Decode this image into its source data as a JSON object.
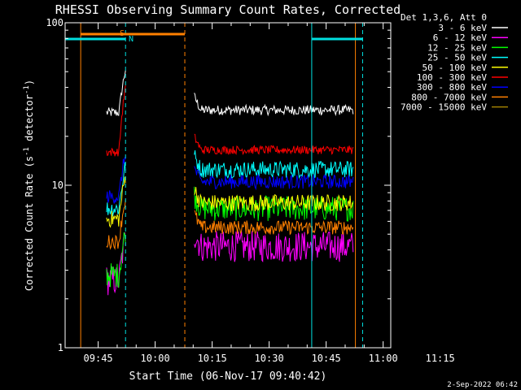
{
  "chart_data": {
    "type": "line",
    "title": "RHESSI Observing Summary Count Rates, Corrected",
    "xlabel": "Start Time (06-Nov-17 09:40:42)",
    "ylabel": "Corrected Count Rate (s",
    "ylabel_sup1": "-1",
    "ylabel_mid": " detector",
    "ylabel_sup2": "-1",
    "ylabel_end": ")",
    "yscale": "log",
    "ylim": [
      1,
      100
    ],
    "ytick_labels": [
      "1",
      "10",
      "100"
    ],
    "xtick_labels": [
      "09:45",
      "10:00",
      "10:15",
      "10:30",
      "10:45",
      "11:00",
      "11:15"
    ],
    "xlim_minutes": [
      -3.7,
      82
    ],
    "legend_header": "Det 1,3,6, Att 0",
    "legend_placement": "right",
    "timestamp": "2-Sep-2022 06:42",
    "flag_labels": [
      "S",
      "N"
    ],
    "markers": {
      "saa_color": "#ff8000",
      "night_color": "#00e0e0",
      "saa_bar_minutes": [
        0.4,
        27.8
      ],
      "night_bar_minutes": [
        [
          -3.7,
          12.2
        ],
        [
          61.2,
          74.6
        ]
      ],
      "saa_lines_solid": [
        0.4,
        72.7
      ],
      "saa_lines_dashed": [
        27.8
      ],
      "night_lines_solid": [
        61.2
      ],
      "night_lines_dashed": [
        12.2,
        74.6
      ]
    },
    "series": [
      {
        "name": "3 - 6 keV",
        "color": "#ffffff",
        "level_pre": 28,
        "level_post": 29,
        "noise": 0.07,
        "segments": [
          [
            7.2,
            12.2
          ],
          [
            30.3,
            72.3
          ]
        ]
      },
      {
        "name": "6 - 12 keV",
        "color": "#ff00ff",
        "level_pre": 2.6,
        "level_post": 4.2,
        "noise": 0.22,
        "segments": [
          [
            7.2,
            12.2
          ],
          [
            30.3,
            72.3
          ]
        ]
      },
      {
        "name": "12 - 25 keV",
        "color": "#00ff00",
        "level_pre": 2.8,
        "level_post": 7.2,
        "noise": 0.18,
        "segments": [
          [
            7.2,
            12.2
          ],
          [
            30.3,
            72.3
          ]
        ]
      },
      {
        "name": "25 - 50 keV",
        "color": "#00ffff",
        "level_pre": 7.2,
        "level_post": 12.5,
        "noise": 0.12,
        "segments": [
          [
            7.2,
            12.2
          ],
          [
            30.3,
            72.3
          ]
        ]
      },
      {
        "name": "50 - 100 keV",
        "color": "#ffff00",
        "level_pre": 6.2,
        "level_post": 7.8,
        "noise": 0.12,
        "segments": [
          [
            7.2,
            12.2
          ],
          [
            30.3,
            72.3
          ]
        ]
      },
      {
        "name": "100 - 300 keV",
        "color": "#ff0000",
        "level_pre": 16,
        "level_post": 16.5,
        "noise": 0.06,
        "segments": [
          [
            7.2,
            12.2
          ],
          [
            30.3,
            72.3
          ]
        ]
      },
      {
        "name": "300 - 800 keV",
        "color": "#0000ff",
        "level_pre": 8.5,
        "level_post": 10.5,
        "noise": 0.1,
        "segments": [
          [
            7.2,
            12.2
          ],
          [
            30.3,
            72.3
          ]
        ]
      },
      {
        "name": "800 - 7000 keV",
        "color": "#ff8000",
        "level_pre": 4.5,
        "level_post": 5.5,
        "noise": 0.1,
        "segments": [
          [
            7.2,
            12.2
          ],
          [
            30.3,
            72.3
          ]
        ]
      },
      {
        "name": "7000 - 15000 keV",
        "color": "#a08000",
        "level_pre": 0,
        "level_post": 0,
        "noise": 0,
        "segments": []
      }
    ]
  }
}
